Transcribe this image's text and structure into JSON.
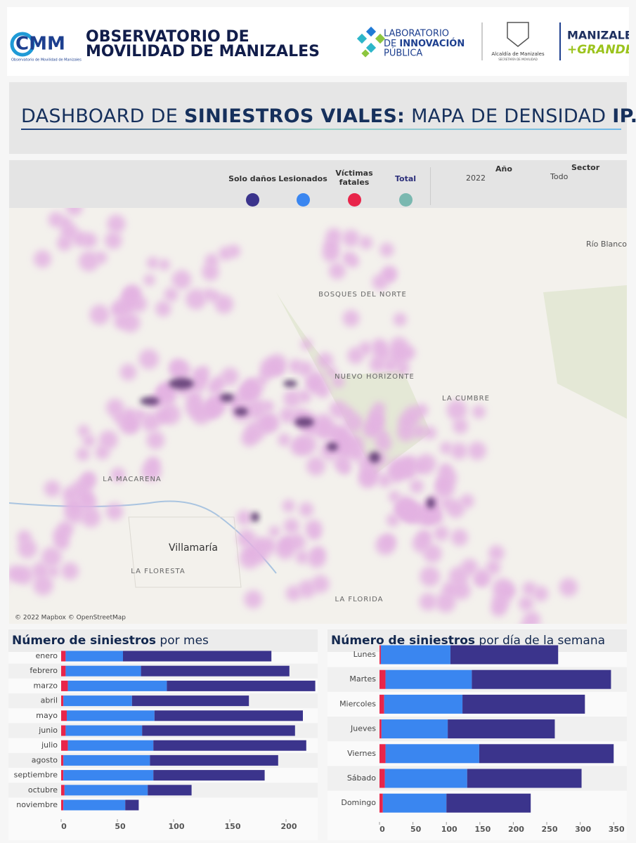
{
  "header": {
    "cmm_logo": "CMM",
    "cmm_tagline": "Observatorio de Movilidad de Manizales",
    "observatory_line1": "OBSERVATORIO DE",
    "observatory_line2": "MOVILIDAD DE MANIZALES",
    "lab_line1": "LABORATORIO",
    "lab_line2a": "DE",
    "lab_line2b": "INNOVACIÓN",
    "lab_line3": "PÚBLICA",
    "alcaldia": "Alcaldía de Manizales",
    "secretaria": "SECRETARÍA DE MOVILIDAD",
    "city_line1": "MANIZALES",
    "city_line2": "+GRANDE"
  },
  "dashboard_title": [
    "DASHBOARD DE",
    "SINIESTROS VIALES:",
    "MAPA DE DENSIDAD",
    "IP.."
  ],
  "legend": [
    {
      "name": "Solo daños",
      "color": "#3b348c"
    },
    {
      "name": "Lesionados",
      "color": "#3a86f0"
    },
    {
      "name": "Víctimas fatales",
      "color": "#e8254a"
    },
    {
      "name": "Total",
      "color": "#7ab8b0"
    }
  ],
  "filters": {
    "year_label": "Año",
    "year": "2022",
    "sector_label": "Sector",
    "sector": "Todo"
  },
  "map": {
    "labels": [
      "Río Blanco",
      "BOSQUES DEL NORTE",
      "LA CUMBRE",
      "Villamaría",
      "LA FLORESTA",
      "LA FLORIDA",
      "LA MACARENA",
      "NUEVO HORIZONTE"
    ],
    "attribution": "© 2022 Mapbox © OpenStreetMap"
  },
  "chart_data": [
    {
      "type": "bar",
      "orientation": "horizontal",
      "stacked": true,
      "title": "Número de siniestros",
      "subtitle": "por mes",
      "categories": [
        "enero",
        "febrero",
        "marzo",
        "abril",
        "mayo",
        "junio",
        "julio",
        "agosto",
        "septiembre",
        "octubre",
        "noviembre"
      ],
      "series": [
        {
          "color": "#e8254a",
          "values": [
            4,
            4,
            6,
            2,
            5,
            4,
            6,
            2,
            2,
            3,
            2
          ]
        },
        {
          "color": "#3a86f0",
          "values": [
            51,
            67,
            88,
            61,
            78,
            68,
            76,
            77,
            80,
            74,
            55
          ]
        },
        {
          "color": "#3b348c",
          "values": [
            132,
            132,
            132,
            104,
            132,
            136,
            136,
            114,
            99,
            39,
            12
          ]
        }
      ],
      "xlim": [
        0,
        230
      ],
      "xticks": [
        0,
        50,
        100,
        150,
        200
      ]
    },
    {
      "type": "bar",
      "orientation": "horizontal",
      "stacked": true,
      "title": "Número de siniestros",
      "subtitle": "por día de la semana",
      "categories": [
        "Lunes",
        "Martes",
        "Miercoles",
        "Jueves",
        "Viernes",
        "Sábado",
        "Domingo"
      ],
      "series": [
        {
          "color": "#e8254a",
          "values": [
            2,
            9,
            7,
            3,
            9,
            8,
            5
          ]
        },
        {
          "color": "#3a86f0",
          "values": [
            104,
            129,
            117,
            99,
            140,
            123,
            95
          ]
        },
        {
          "color": "#3b348c",
          "values": [
            161,
            208,
            183,
            160,
            201,
            171,
            126
          ]
        }
      ],
      "xlim": [
        0,
        355
      ],
      "xticks": [
        0,
        50,
        100,
        150,
        200,
        250,
        300,
        350
      ]
    }
  ]
}
